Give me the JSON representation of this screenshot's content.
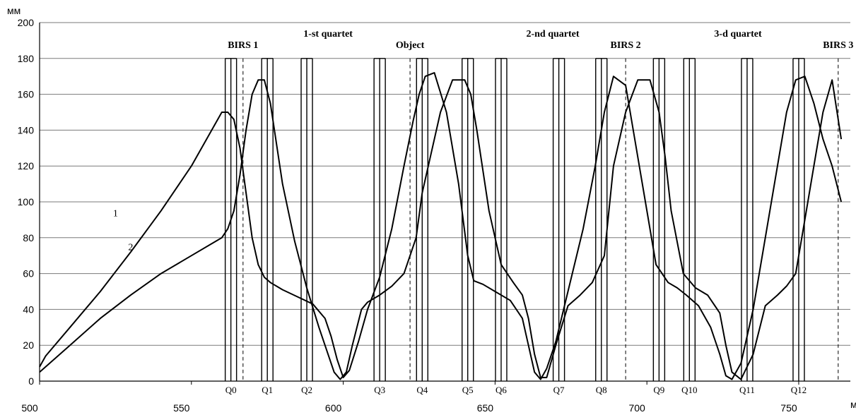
{
  "chart_data": {
    "type": "line",
    "title": "",
    "ylabel": "мм",
    "xlabel": "м",
    "xlim": [
      500,
      767
    ],
    "ylim": [
      0,
      200
    ],
    "x_ticks": [
      "500",
      "550",
      "600",
      "650",
      "700",
      "750"
    ],
    "y_ticks": [
      "0",
      "20",
      "40",
      "60",
      "80",
      "100",
      "120",
      "140",
      "160",
      "180",
      "200"
    ],
    "grid": true,
    "series": [
      {
        "name": "1",
        "x": [
          500,
          502,
          510,
          520,
          530,
          540,
          550,
          555,
          560,
          562,
          564,
          566,
          568,
          570,
          572,
          574,
          576,
          578,
          580,
          585,
          590,
          594,
          596,
          598,
          600,
          602,
          605,
          608,
          612,
          616,
          620,
          623,
          625,
          627,
          630,
          634,
          638,
          641,
          643,
          646,
          650,
          655,
          659,
          661,
          663,
          665,
          667,
          670,
          674,
          679,
          683,
          686,
          689,
          693,
          697,
          700,
          703,
          707,
          710,
          713,
          717,
          721,
          724,
          726,
          728,
          731,
          735,
          739,
          743,
          746,
          749,
          752,
          755,
          758,
          761,
          764
        ],
        "y": [
          8,
          14,
          30,
          50,
          72,
          95,
          120,
          135,
          150,
          150,
          146,
          130,
          105,
          80,
          65,
          58,
          55,
          53,
          51,
          47,
          43,
          35,
          25,
          12,
          2,
          6,
          22,
          40,
          58,
          85,
          120,
          145,
          160,
          170,
          172,
          150,
          110,
          70,
          56,
          54,
          50,
          45,
          35,
          20,
          5,
          1,
          7,
          22,
          50,
          85,
          120,
          150,
          170,
          165,
          125,
          95,
          65,
          55,
          52,
          48,
          42,
          30,
          15,
          3,
          1,
          10,
          40,
          80,
          120,
          150,
          168,
          170,
          155,
          135,
          120,
          100
        ]
      },
      {
        "name": "2",
        "x": [
          500,
          510,
          520,
          530,
          540,
          550,
          558,
          560,
          562,
          564,
          566,
          568,
          570,
          572,
          574,
          576,
          580,
          584,
          588,
          592,
          595,
          597,
          599,
          601,
          603,
          606,
          608,
          612,
          616,
          620,
          624,
          626,
          628,
          632,
          636,
          640,
          642,
          644,
          648,
          652,
          656,
          659,
          661,
          663,
          665,
          667,
          670,
          674,
          678,
          682,
          686,
          689,
          693,
          697,
          701,
          704,
          706,
          708,
          712,
          716,
          720,
          724,
          726,
          728,
          731,
          735,
          739,
          743,
          746,
          749,
          752,
          755,
          758,
          761,
          764
        ],
        "y": [
          5,
          20,
          35,
          48,
          60,
          70,
          78,
          80,
          85,
          95,
          115,
          140,
          160,
          168,
          168,
          155,
          110,
          78,
          52,
          30,
          15,
          5,
          1,
          5,
          20,
          40,
          44,
          48,
          53,
          60,
          80,
          105,
          120,
          150,
          168,
          168,
          160,
          140,
          95,
          65,
          55,
          48,
          35,
          15,
          2,
          2,
          20,
          42,
          48,
          55,
          70,
          120,
          150,
          168,
          168,
          150,
          125,
          95,
          60,
          52,
          48,
          38,
          20,
          5,
          1,
          15,
          42,
          48,
          53,
          60,
          90,
          120,
          150,
          168,
          135
        ]
      }
    ],
    "curve_labels": [
      {
        "text": "1",
        "x": 525,
        "y": 92
      },
      {
        "text": "2",
        "x": 530,
        "y": 73
      }
    ],
    "quads": [
      {
        "label": "Q0",
        "x": 563
      },
      {
        "label": "Q1",
        "x": 575
      },
      {
        "label": "Q2",
        "x": 588
      },
      {
        "label": "Q3",
        "x": 612
      },
      {
        "label": "Q4",
        "x": 626
      },
      {
        "label": "Q5",
        "x": 641
      },
      {
        "label": "Q6",
        "x": 652
      },
      {
        "label": "Q7",
        "x": 671
      },
      {
        "label": "Q8",
        "x": 685
      },
      {
        "label": "Q9",
        "x": 704
      },
      {
        "label": "Q10",
        "x": 714
      },
      {
        "label": "Q11",
        "x": 733
      },
      {
        "label": "Q12",
        "x": 750
      }
    ],
    "markers": [
      {
        "label": "BIRS 1",
        "x": 567
      },
      {
        "label": "Object",
        "x": 622
      },
      {
        "label": "BIRS 2",
        "x": 693
      },
      {
        "label": "BIRS 3",
        "x": 763
      }
    ],
    "section_labels": [
      {
        "text": "1-st quartet",
        "x": 595
      },
      {
        "text": "2-nd quartet",
        "x": 669
      },
      {
        "text": "3-d quartet",
        "x": 730
      }
    ]
  }
}
